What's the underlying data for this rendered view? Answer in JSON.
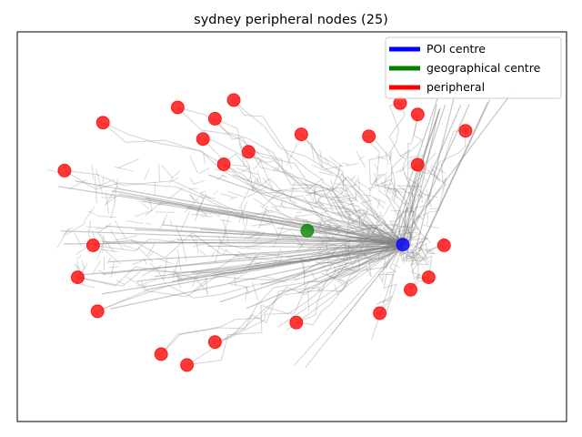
{
  "chart_data": {
    "type": "scatter",
    "title": "sydney peripheral nodes (25)",
    "xlabel": "",
    "ylabel": "",
    "xlim": [
      0,
      100
    ],
    "ylim": [
      0,
      100
    ],
    "axis_ticks": false,
    "grid": false,
    "legend_position": "top-right",
    "legend": [
      {
        "label": "POI centre",
        "color": "#0000ff"
      },
      {
        "label": "geographical centre",
        "color": "#008000"
      },
      {
        "label": "peripheral",
        "color": "#ff0000"
      }
    ],
    "series": [
      {
        "name": "peripheral",
        "color": "#ff0000",
        "points": [
          [
            15.6,
            76.7
          ],
          [
            29.2,
            80.6
          ],
          [
            36.0,
            77.7
          ],
          [
            39.4,
            82.5
          ],
          [
            33.8,
            72.5
          ],
          [
            8.6,
            64.4
          ],
          [
            37.6,
            66.0
          ],
          [
            42.1,
            69.2
          ],
          [
            51.7,
            73.7
          ],
          [
            64.0,
            73.2
          ],
          [
            69.7,
            81.7
          ],
          [
            72.9,
            78.8
          ],
          [
            81.6,
            74.6
          ],
          [
            72.9,
            65.9
          ],
          [
            77.7,
            45.2
          ],
          [
            13.8,
            45.2
          ],
          [
            11.0,
            37.0
          ],
          [
            74.9,
            37.0
          ],
          [
            71.6,
            33.8
          ],
          [
            14.6,
            28.3
          ],
          [
            66.0,
            27.8
          ],
          [
            50.8,
            25.4
          ],
          [
            36.0,
            20.4
          ],
          [
            26.2,
            17.3
          ],
          [
            30.9,
            14.5
          ]
        ]
      },
      {
        "name": "POI centre",
        "color": "#0000ff",
        "points": [
          [
            70.2,
            45.4
          ]
        ]
      },
      {
        "name": "geographical centre",
        "color": "#008000",
        "points": [
          [
            52.8,
            49.0
          ]
        ]
      }
    ]
  }
}
